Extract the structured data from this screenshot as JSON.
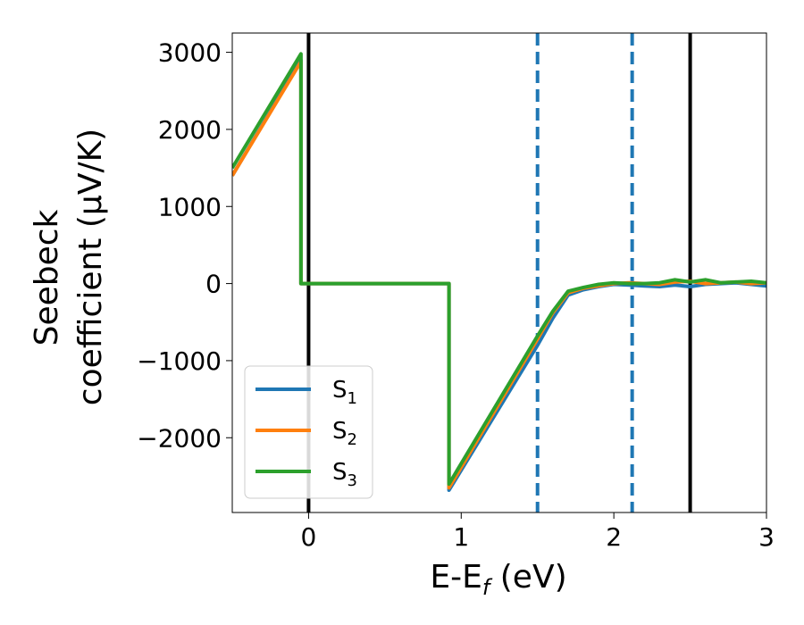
{
  "chart_data": {
    "type": "line",
    "title": "",
    "xlabel": {
      "main": "E-E",
      "sub": "f",
      "suffix": " (eV)"
    },
    "ylabel": {
      "line1": "Seebeck",
      "line2": "coefficient  (μV/K)"
    },
    "xlim": [
      -0.5,
      3.0
    ],
    "ylim": [
      -2970,
      3250
    ],
    "xticks": [
      0,
      1,
      2,
      3
    ],
    "xtick_labels": [
      "0",
      "1",
      "2",
      "3"
    ],
    "yticks": [
      -2000,
      -1000,
      0,
      1000,
      2000,
      3000
    ],
    "ytick_labels": [
      "−2000",
      "−1000",
      "0",
      "1000",
      "2000",
      "3000"
    ],
    "grid": false,
    "legend_position": "lower-left",
    "vertical_lines": [
      {
        "x": 0.0,
        "style": "solid",
        "color": "#000000"
      },
      {
        "x": 1.5,
        "style": "dashed",
        "color": "#1f77b4"
      },
      {
        "x": 2.12,
        "style": "dashed",
        "color": "#1f77b4"
      },
      {
        "x": 2.5,
        "style": "solid",
        "color": "#000000"
      }
    ],
    "series": [
      {
        "name": "S",
        "sub": "1",
        "color": "#1f77b4",
        "x": [
          -0.5,
          -0.05,
          -0.05,
          0.92,
          0.92,
          1.5,
          1.6,
          1.7,
          1.8,
          1.9,
          2.0,
          2.1,
          2.2,
          2.3,
          2.4,
          2.5,
          2.6,
          2.7,
          2.8,
          2.9,
          3.0
        ],
        "y": [
          1400,
          2900,
          0,
          0,
          -2680,
          -800,
          -450,
          -150,
          -80,
          -40,
          -10,
          -20,
          -30,
          -40,
          -20,
          -40,
          -10,
          0,
          10,
          -10,
          -30
        ]
      },
      {
        "name": "S",
        "sub": "2",
        "color": "#ff7f0e",
        "x": [
          -0.5,
          -0.05,
          -0.05,
          0.92,
          0.92,
          1.5,
          1.6,
          1.7,
          1.8,
          1.9,
          2.0,
          2.1,
          2.2,
          2.3,
          2.4,
          2.5,
          2.6,
          2.7,
          2.8,
          2.9,
          3.0
        ],
        "y": [
          1400,
          2880,
          0,
          0,
          -2650,
          -720,
          -380,
          -120,
          -60,
          -30,
          0,
          10,
          0,
          -10,
          20,
          30,
          0,
          10,
          20,
          0,
          10
        ]
      },
      {
        "name": "S",
        "sub": "3",
        "color": "#2ca02c",
        "x": [
          -0.5,
          -0.05,
          -0.05,
          0.92,
          0.92,
          1.5,
          1.6,
          1.7,
          1.8,
          1.9,
          2.0,
          2.1,
          2.2,
          2.3,
          2.4,
          2.5,
          2.6,
          2.7,
          2.8,
          2.9,
          3.0
        ],
        "y": [
          1500,
          2980,
          0,
          0,
          -2600,
          -680,
          -360,
          -100,
          -50,
          -10,
          10,
          0,
          0,
          10,
          50,
          20,
          50,
          10,
          20,
          30,
          10
        ]
      }
    ]
  }
}
